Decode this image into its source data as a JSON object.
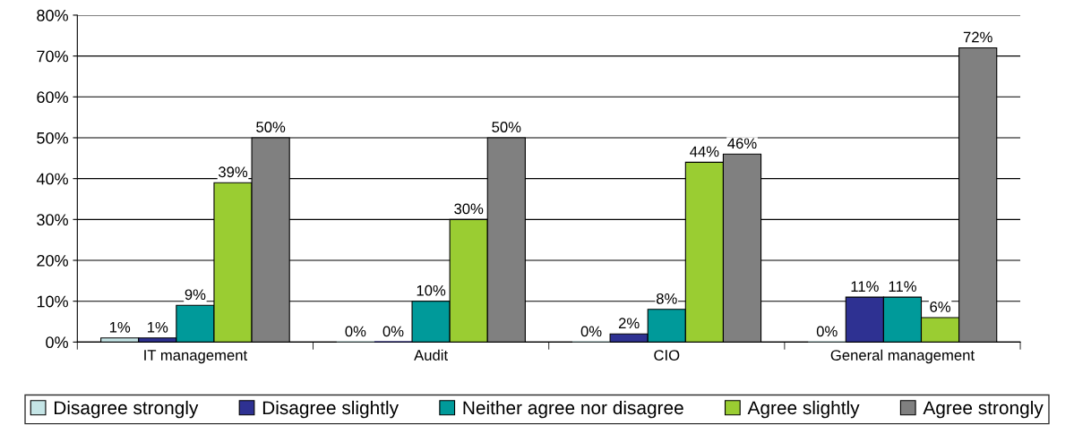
{
  "chart_data": {
    "type": "bar",
    "categories": [
      "IT management",
      "Audit",
      "CIO",
      "General management"
    ],
    "series": [
      {
        "name": "Disagree strongly",
        "color": "#c5e5e6",
        "values": [
          1,
          0,
          0,
          0
        ],
        "value_labels": [
          "1%",
          "0%",
          "0%",
          "0%"
        ]
      },
      {
        "name": "Disagree slightly",
        "color": "#2e3192",
        "values": [
          1,
          0,
          2,
          11
        ],
        "value_labels": [
          "1%",
          "0%",
          "2%",
          "11%"
        ]
      },
      {
        "name": "Neither agree nor disagree",
        "color": "#009a9a",
        "values": [
          9,
          10,
          8,
          11
        ],
        "value_labels": [
          "9%",
          "10%",
          "8%",
          "11%"
        ]
      },
      {
        "name": "Agree slightly",
        "color": "#9acd32",
        "values": [
          39,
          30,
          44,
          6
        ],
        "value_labels": [
          "39%",
          "30%",
          "44%",
          "6%"
        ]
      },
      {
        "name": "Agree strongly",
        "color": "#808080",
        "values": [
          50,
          50,
          46,
          72
        ],
        "value_labels": [
          "50%",
          "50%",
          "46%",
          "72%"
        ]
      }
    ],
    "ylim": [
      0,
      80
    ],
    "yticks": [
      {
        "value": 0,
        "label": "0%"
      },
      {
        "value": 10,
        "label": "10%"
      },
      {
        "value": 20,
        "label": "20%"
      },
      {
        "value": 30,
        "label": "30%"
      },
      {
        "value": 40,
        "label": "40%"
      },
      {
        "value": 50,
        "label": "50%"
      },
      {
        "value": 60,
        "label": "60%"
      },
      {
        "value": 70,
        "label": "70%"
      },
      {
        "value": 80,
        "label": "80%"
      }
    ],
    "grid": "y",
    "legend": "bottom"
  }
}
